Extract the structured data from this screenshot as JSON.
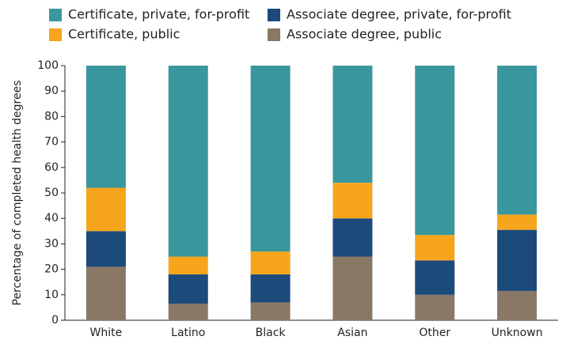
{
  "chart_data": {
    "type": "stacked_bar",
    "y_label": "Percentage of completed health degrees",
    "categories": [
      "White",
      "Latino",
      "Black",
      "Asian",
      "Other",
      "Unknown"
    ],
    "series": [
      {
        "name": "Associate degree, public",
        "color": "#8a7866",
        "values": [
          21,
          6.5,
          7,
          25,
          10,
          11.5
        ]
      },
      {
        "name": "Associate degree, private, for-profit",
        "color": "#1b4a7b",
        "values": [
          14,
          11.5,
          11,
          15,
          13.5,
          24
        ]
      },
      {
        "name": "Certificate, public",
        "color": "#f6a51c",
        "values": [
          17,
          7,
          9,
          14,
          10,
          6
        ]
      },
      {
        "name": "Certificate, private, for-profit",
        "color": "#3a979e",
        "values": [
          48,
          75,
          73,
          46,
          66.5,
          58.5
        ]
      }
    ],
    "ylim": [
      0,
      100
    ],
    "yticks": [
      0,
      10,
      20,
      30,
      40,
      50,
      60,
      70,
      80,
      90,
      100
    ]
  }
}
